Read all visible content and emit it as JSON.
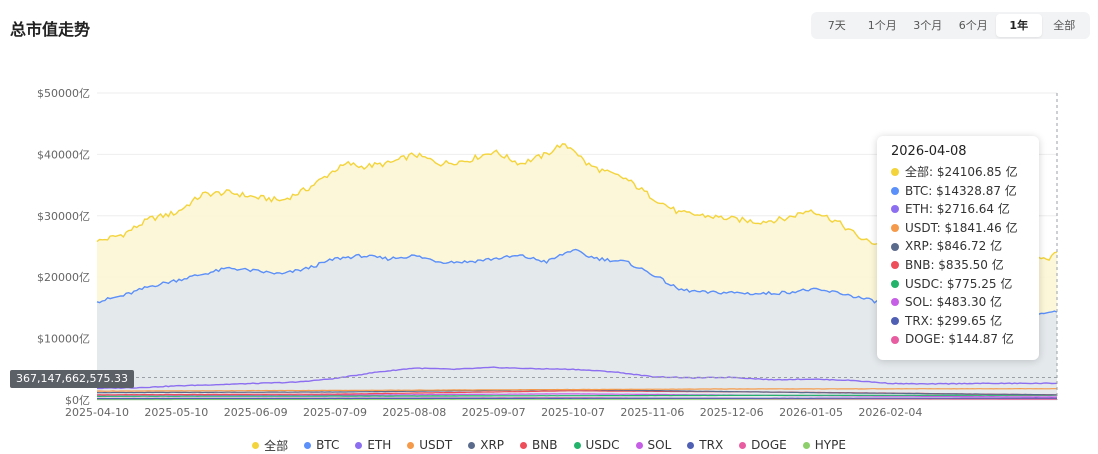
{
  "page": {
    "title": "总市值走势"
  },
  "range_tabs": [
    {
      "label": "7天",
      "active": false
    },
    {
      "label": "1个月",
      "active": false
    },
    {
      "label": "3个月",
      "active": false
    },
    {
      "label": "6个月",
      "active": false
    },
    {
      "label": "1年",
      "active": true
    },
    {
      "label": "全部",
      "active": false
    }
  ],
  "crosshair": {
    "value_label": "367,147,662,575.33"
  },
  "tooltip": {
    "date": "2026-04-08",
    "rows": [
      {
        "name": "全部",
        "value": "$24106.85 亿",
        "color": "#f3d43c"
      },
      {
        "name": "BTC",
        "value": "$14328.87 亿",
        "color": "#5b8ff9"
      },
      {
        "name": "ETH",
        "value": "$2716.64 亿",
        "color": "#8c6ff0"
      },
      {
        "name": "USDT",
        "value": "$1841.46 亿",
        "color": "#f59a4a"
      },
      {
        "name": "XRP",
        "value": "$846.72 亿",
        "color": "#5b6b8c"
      },
      {
        "name": "BNB",
        "value": "$835.50 亿",
        "color": "#ee4d5a"
      },
      {
        "name": "USDC",
        "value": "$775.25 亿",
        "color": "#23b36b"
      },
      {
        "name": "SOL",
        "value": "$483.30 亿",
        "color": "#c65fe6"
      },
      {
        "name": "TRX",
        "value": "$299.65 亿",
        "color": "#4f5fb3"
      },
      {
        "name": "DOGE",
        "value": "$144.87 亿",
        "color": "#e85da1"
      }
    ]
  },
  "chart_data": {
    "type": "area",
    "title": "总市值走势",
    "y_unit": "亿 USD",
    "ylim": [
      0,
      50000
    ],
    "y_ticks": [
      "$0亿",
      "$10000亿",
      "$20000亿",
      "$30000亿",
      "$40000亿",
      "$50000亿"
    ],
    "y_tick_values": [
      0,
      10000,
      20000,
      30000,
      40000,
      50000
    ],
    "x_range": [
      "2025-04-10",
      "2026-04-08"
    ],
    "x_ticks": [
      "2025-04-10",
      "2025-05-10",
      "2025-06-09",
      "2025-07-09",
      "2025-08-08",
      "2025-09-07",
      "2025-10-07",
      "2025-11-06",
      "2025-12-06",
      "2026-01-05",
      "2026-02-04"
    ],
    "x_tick_days": [
      0,
      30,
      60,
      90,
      120,
      150,
      180,
      210,
      240,
      270,
      300
    ],
    "total_days": 363,
    "grid": true,
    "legend_position": "bottom",
    "series": [
      {
        "name": "全部",
        "color": "#f3d43c",
        "fill": "#fdf6d2",
        "days": [
          0,
          10,
          20,
          30,
          40,
          50,
          60,
          70,
          80,
          90,
          95,
          100,
          110,
          120,
          130,
          140,
          150,
          160,
          170,
          175,
          180,
          185,
          190,
          200,
          210,
          220,
          230,
          240,
          250,
          260,
          270,
          280,
          290,
          300,
          310,
          320,
          330,
          340,
          350,
          355,
          360,
          363
        ],
        "values": [
          25800,
          27000,
          29500,
          30500,
          33500,
          33800,
          33000,
          32500,
          34500,
          37500,
          38500,
          38000,
          38500,
          40000,
          38500,
          39000,
          40500,
          38500,
          40000,
          41500,
          41000,
          38500,
          37500,
          36000,
          33000,
          30500,
          30000,
          29500,
          29000,
          29500,
          31000,
          29000,
          26000,
          25000,
          24000,
          23500,
          23000,
          23500,
          23000,
          23500,
          23000,
          24100
        ]
      },
      {
        "name": "BTC",
        "color": "#5b8ff9",
        "fill": "#dfe6ee",
        "days": [
          0,
          10,
          20,
          30,
          40,
          50,
          60,
          70,
          80,
          90,
          100,
          110,
          120,
          130,
          140,
          150,
          160,
          170,
          180,
          185,
          190,
          200,
          210,
          220,
          230,
          240,
          250,
          260,
          270,
          280,
          290,
          300,
          310,
          320,
          330,
          340,
          350,
          355,
          360,
          363
        ],
        "values": [
          16000,
          17000,
          18500,
          19500,
          20500,
          21500,
          21000,
          20500,
          21500,
          23000,
          23500,
          23000,
          23500,
          22500,
          22500,
          23000,
          23500,
          22500,
          24500,
          23500,
          23000,
          22500,
          20500,
          18000,
          17500,
          17500,
          17300,
          17500,
          18000,
          17500,
          16500,
          15500,
          14500,
          14000,
          13500,
          13500,
          13800,
          14000,
          14200,
          14330
        ]
      },
      {
        "name": "ETH",
        "color": "#8c6ff0",
        "days": [
          0,
          15,
          30,
          45,
          60,
          75,
          90,
          105,
          120,
          135,
          150,
          165,
          180,
          195,
          210,
          225,
          240,
          255,
          270,
          285,
          300,
          315,
          330,
          345,
          363
        ],
        "values": [
          1900,
          2000,
          2300,
          2500,
          2700,
          2900,
          3500,
          4500,
          5200,
          5000,
          5300,
          5100,
          5000,
          4600,
          3800,
          3600,
          3700,
          3300,
          3400,
          3200,
          2700,
          2600,
          2700,
          2700,
          2720
        ]
      },
      {
        "name": "USDT",
        "color": "#f59a4a",
        "days": [
          0,
          120,
          240,
          363
        ],
        "values": [
          1450,
          1600,
          1800,
          1840
        ]
      },
      {
        "name": "XRP",
        "color": "#5b6b8c",
        "days": [
          0,
          90,
          180,
          270,
          363
        ],
        "values": [
          1200,
          1300,
          1700,
          1200,
          850
        ]
      },
      {
        "name": "BNB",
        "color": "#ee4d5a",
        "days": [
          0,
          90,
          180,
          270,
          363
        ],
        "values": [
          850,
          950,
          1500,
          1250,
          835
        ]
      },
      {
        "name": "USDC",
        "color": "#23b36b",
        "days": [
          0,
          120,
          240,
          363
        ],
        "values": [
          600,
          650,
          750,
          775
        ]
      },
      {
        "name": "SOL",
        "color": "#c65fe6",
        "days": [
          0,
          90,
          180,
          270,
          363
        ],
        "values": [
          650,
          800,
          1000,
          700,
          483
        ]
      },
      {
        "name": "TRX",
        "color": "#4f5fb3",
        "days": [
          0,
          120,
          240,
          363
        ],
        "values": [
          230,
          260,
          280,
          300
        ]
      },
      {
        "name": "DOGE",
        "color": "#e85da1",
        "days": [
          0,
          90,
          180,
          270,
          363
        ],
        "values": [
          250,
          300,
          350,
          200,
          145
        ]
      },
      {
        "name": "HYPE",
        "color": "#8ccf6b",
        "days": [
          0,
          120,
          240,
          363
        ],
        "values": [
          80,
          120,
          150,
          130
        ]
      }
    ]
  }
}
